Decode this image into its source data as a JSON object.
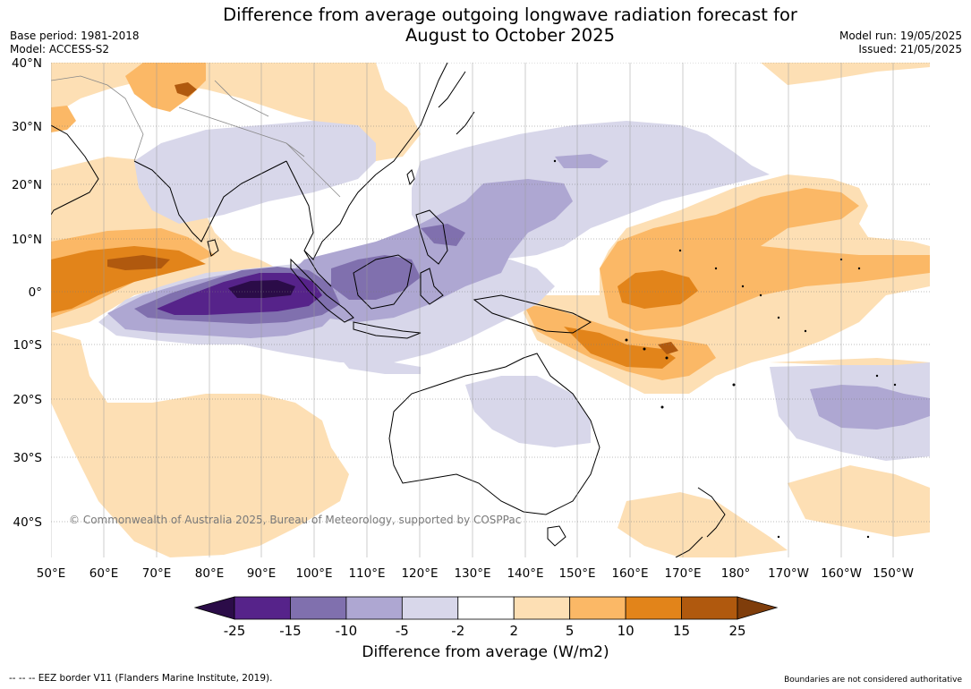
{
  "title": {
    "line1": "Difference from average outgoing longwave radiation forecast for",
    "line2": "August to October 2025"
  },
  "meta_left": {
    "base_period": "Base period: 1981-2018",
    "model": "Model: ACCESS-S2"
  },
  "meta_right": {
    "model_run": "Model run: 19/05/2025",
    "issued": "Issued: 21/05/2025"
  },
  "latitude_labels": [
    "40°N",
    "30°N",
    "20°N",
    "10°N",
    "0°",
    "10°S",
    "20°S",
    "30°S",
    "40°S"
  ],
  "longitude_labels": [
    "50°E",
    "60°E",
    "70°E",
    "80°E",
    "90°E",
    "100°E",
    "110°E",
    "120°E",
    "130°E",
    "140°E",
    "150°E",
    "160°E",
    "170°E",
    "180°",
    "170°W",
    "160°W",
    "150°W"
  ],
  "copyright": "© Commonwealth of Australia 2025, Bureau of Meteorology, supported by COSPPac",
  "colorbar": {
    "ticks": [
      "-25",
      "-15",
      "-10",
      "-5",
      "-2",
      "2",
      "5",
      "10",
      "15",
      "25"
    ],
    "colors": [
      "#2b0c48",
      "#56238a",
      "#8070ae",
      "#aea7d2",
      "#d8d7ea",
      "#ffffff",
      "#fddfb4",
      "#fbb866",
      "#e2841a",
      "#b0590e",
      "#7f3d0b"
    ],
    "label": "Difference from average (W/m2)"
  },
  "footer": {
    "eez": "--  --  -- EEZ border V11 (Flanders Marine Institute, 2019).",
    "boundaries": "Boundaries are not considered authoritative"
  }
}
